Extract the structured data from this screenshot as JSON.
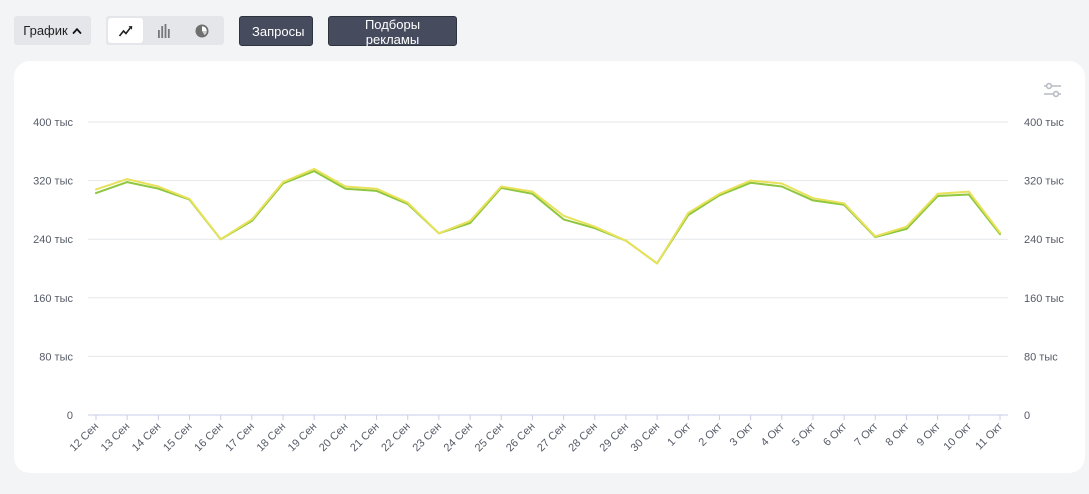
{
  "toolbar": {
    "view_toggle_label": "График",
    "chart_types": [
      {
        "name": "line",
        "icon": "line-chart-icon",
        "active": true
      },
      {
        "name": "bar",
        "icon": "bar-chart-icon",
        "active": false
      },
      {
        "name": "pie",
        "icon": "pie-chart-icon",
        "active": false
      }
    ],
    "queries_label": "Запросы",
    "ad_selections_label": "Подборы рекламы"
  },
  "settings_icon": "sliders-icon",
  "colors": {
    "series_green": "#8ec63f",
    "series_yellow": "#e8e25a",
    "grid": "#e6e7ea",
    "axis": "#c9cde8",
    "button_dark": "#464c5e"
  },
  "chart_data": {
    "type": "line",
    "x": [
      "12 Сен",
      "13 Сен",
      "14 Сен",
      "15 Сен",
      "16 Сен",
      "17 Сен",
      "18 Сен",
      "19 Сен",
      "20 Сен",
      "21 Сен",
      "22 Сен",
      "23 Сен",
      "24 Сен",
      "25 Сен",
      "26 Сен",
      "27 Сен",
      "28 Сен",
      "29 Сен",
      "30 Сен",
      "1 Окт",
      "2 Окт",
      "3 Окт",
      "4 Окт",
      "5 Окт",
      "6 Окт",
      "7 Окт",
      "8 Окт",
      "9 Окт",
      "10 Окт",
      "11 Окт"
    ],
    "series": [
      {
        "color": "#8ec63f",
        "values": [
          303,
          318,
          309,
          294,
          240,
          265,
          316,
          333,
          309,
          306,
          288,
          248,
          262,
          310,
          302,
          267,
          255,
          238,
          207,
          273,
          300,
          317,
          312,
          293,
          287,
          243,
          254,
          299,
          301,
          247
        ]
      },
      {
        "color": "#e8e25a",
        "values": [
          308,
          322,
          312,
          295,
          240,
          267,
          318,
          336,
          312,
          309,
          290,
          248,
          265,
          312,
          305,
          272,
          257,
          238,
          207,
          276,
          302,
          320,
          316,
          296,
          289,
          244,
          257,
          302,
          305,
          249
        ]
      }
    ],
    "yticks": [
      "0",
      "80 тыс",
      "160 тыс",
      "240 тыс",
      "320 тыс",
      "400 тыс"
    ],
    "ylim": [
      0,
      400
    ],
    "grid": true,
    "dual_y_axis": true
  }
}
